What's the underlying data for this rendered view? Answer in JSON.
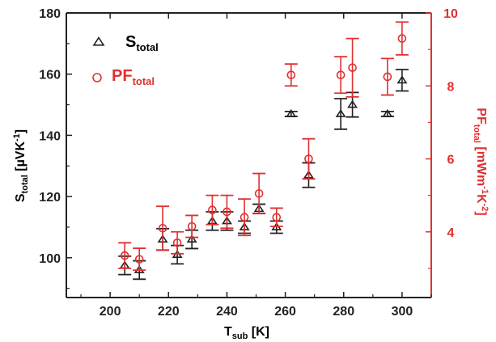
{
  "chart_data": {
    "type": "scatter",
    "xlabel": {
      "main": "T",
      "sub": "sub",
      "unit": " [K]"
    },
    "ylabel_left": {
      "main": "S",
      "sub": "total",
      "unit": " [µVK",
      "sup": "-1",
      "close": "]"
    },
    "ylabel_right": {
      "main": "PF",
      "sub": "total",
      "unit": " [mWm",
      "sup1": "-1",
      "mid": "K",
      "sup2": "-2",
      "close": "]"
    },
    "xlim": [
      185,
      310
    ],
    "ylim_left": [
      87,
      180
    ],
    "ylim_right": [
      2.2,
      10
    ],
    "x_ticks": [
      200,
      220,
      240,
      260,
      280,
      300
    ],
    "y_left_ticks": [
      100,
      120,
      140,
      160,
      180
    ],
    "y_right_ticks": [
      4,
      6,
      8,
      10
    ],
    "legend_position": "top-left",
    "colors": {
      "s_total": "#222222",
      "pf_total": "#e03030",
      "axis": "#222222",
      "right_axis": "#e03030"
    },
    "series": [
      {
        "name": "S",
        "name_sub": "total",
        "axis": "left",
        "marker": "triangle-open",
        "points": [
          {
            "x": 205,
            "y": 97.5,
            "err": 3
          },
          {
            "x": 210,
            "y": 96,
            "err": 3
          },
          {
            "x": 218,
            "y": 106,
            "err": 3.5
          },
          {
            "x": 223,
            "y": 101,
            "err": 3
          },
          {
            "x": 228,
            "y": 106,
            "err": 3
          },
          {
            "x": 235,
            "y": 112,
            "err": 3
          },
          {
            "x": 240,
            "y": 112,
            "err": 3
          },
          {
            "x": 246,
            "y": 110,
            "err": 2
          },
          {
            "x": 251,
            "y": 116,
            "err": 1.5
          },
          {
            "x": 257,
            "y": 110,
            "err": 2
          },
          {
            "x": 262,
            "y": 147,
            "err": 0.8
          },
          {
            "x": 268,
            "y": 127,
            "err": 4
          },
          {
            "x": 279,
            "y": 147,
            "err": 5
          },
          {
            "x": 283,
            "y": 150,
            "err": 4
          },
          {
            "x": 295,
            "y": 147,
            "err": 0.8
          },
          {
            "x": 300,
            "y": 158,
            "err": 3.5
          }
        ]
      },
      {
        "name": "PF",
        "name_sub": "total",
        "axis": "right",
        "marker": "circle-open",
        "points": [
          {
            "x": 205,
            "y": 3.35,
            "err": 0.35
          },
          {
            "x": 210,
            "y": 3.25,
            "err": 0.3
          },
          {
            "x": 218,
            "y": 4.1,
            "err": 0.6
          },
          {
            "x": 223,
            "y": 3.7,
            "err": 0.3
          },
          {
            "x": 228,
            "y": 4.15,
            "err": 0.3
          },
          {
            "x": 235,
            "y": 4.6,
            "err": 0.4
          },
          {
            "x": 240,
            "y": 4.55,
            "err": 0.45
          },
          {
            "x": 246,
            "y": 4.4,
            "err": 0.5
          },
          {
            "x": 251,
            "y": 5.05,
            "err": 0.55
          },
          {
            "x": 257,
            "y": 4.4,
            "err": 0.25
          },
          {
            "x": 262,
            "y": 8.3,
            "err": 0.3
          },
          {
            "x": 268,
            "y": 6.0,
            "err": 0.55
          },
          {
            "x": 279,
            "y": 8.3,
            "err": 0.5
          },
          {
            "x": 283,
            "y": 8.5,
            "err": 0.8
          },
          {
            "x": 295,
            "y": 8.25,
            "err": 0.5
          },
          {
            "x": 300,
            "y": 9.3,
            "err": 0.45
          }
        ]
      }
    ]
  }
}
